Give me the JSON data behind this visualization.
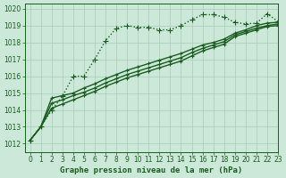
{
  "title": "Graphe pression niveau de la mer (hPa)",
  "background_color": "#cce8d8",
  "grid_color": "#a8cdb8",
  "line_color": "#1a5c20",
  "xlim": [
    -0.5,
    23
  ],
  "ylim": [
    1011.5,
    1020.3
  ],
  "yticks": [
    1012,
    1013,
    1014,
    1015,
    1016,
    1017,
    1018,
    1019,
    1020
  ],
  "xticks": [
    0,
    1,
    2,
    3,
    4,
    5,
    6,
    7,
    8,
    9,
    10,
    11,
    12,
    13,
    14,
    15,
    16,
    17,
    18,
    19,
    20,
    21,
    22,
    23
  ],
  "series": [
    {
      "x": [
        0,
        1,
        2,
        3,
        4,
        5,
        6,
        7,
        8,
        9,
        10,
        11,
        12,
        13,
        14,
        15,
        16,
        17,
        18,
        19,
        20,
        21,
        22,
        23
      ],
      "y": [
        1012.2,
        1013.0,
        1014.0,
        1014.8,
        1016.0,
        1016.0,
        1017.0,
        1018.1,
        1018.85,
        1019.0,
        1018.9,
        1018.9,
        1018.75,
        1018.75,
        1019.0,
        1019.35,
        1019.65,
        1019.65,
        1019.5,
        1019.2,
        1019.1,
        1019.15,
        1019.7,
        1019.25
      ],
      "marker": "+",
      "markersize": 4,
      "linewidth": 1.0,
      "linestyle": "dotted"
    },
    {
      "x": [
        0,
        1,
        2,
        3,
        4,
        5,
        6,
        7,
        8,
        9,
        10,
        11,
        12,
        13,
        14,
        15,
        16,
        17,
        18,
        19,
        20,
        21,
        22,
        23
      ],
      "y": [
        1012.2,
        1013.0,
        1014.7,
        1014.85,
        1015.0,
        1015.3,
        1015.55,
        1015.85,
        1016.1,
        1016.35,
        1016.55,
        1016.75,
        1016.95,
        1017.15,
        1017.35,
        1017.6,
        1017.85,
        1018.0,
        1018.2,
        1018.55,
        1018.75,
        1019.0,
        1019.15,
        1019.2
      ],
      "marker": "+",
      "markersize": 3,
      "linewidth": 1.0,
      "linestyle": "solid"
    },
    {
      "x": [
        0,
        1,
        2,
        3,
        4,
        5,
        6,
        7,
        8,
        9,
        10,
        11,
        12,
        13,
        14,
        15,
        16,
        17,
        18,
        19,
        20,
        21,
        22,
        23
      ],
      "y": [
        1012.2,
        1013.0,
        1014.4,
        1014.6,
        1014.85,
        1015.05,
        1015.3,
        1015.6,
        1015.85,
        1016.1,
        1016.3,
        1016.5,
        1016.7,
        1016.9,
        1017.1,
        1017.4,
        1017.65,
        1017.85,
        1018.05,
        1018.45,
        1018.65,
        1018.85,
        1019.0,
        1019.1
      ],
      "marker": "+",
      "markersize": 3,
      "linewidth": 1.0,
      "linestyle": "solid"
    },
    {
      "x": [
        0,
        1,
        2,
        3,
        4,
        5,
        6,
        7,
        8,
        9,
        10,
        11,
        12,
        13,
        14,
        15,
        16,
        17,
        18,
        19,
        20,
        21,
        22,
        23
      ],
      "y": [
        1012.2,
        1013.0,
        1014.1,
        1014.35,
        1014.6,
        1014.85,
        1015.1,
        1015.4,
        1015.65,
        1015.9,
        1016.1,
        1016.3,
        1016.5,
        1016.7,
        1016.9,
        1017.2,
        1017.5,
        1017.7,
        1017.9,
        1018.35,
        1018.55,
        1018.75,
        1018.95,
        1019.0
      ],
      "marker": "+",
      "markersize": 3,
      "linewidth": 1.0,
      "linestyle": "solid"
    }
  ],
  "tick_fontsize": 5.5,
  "label_fontsize": 6.5,
  "label_color": "#1a5c20"
}
